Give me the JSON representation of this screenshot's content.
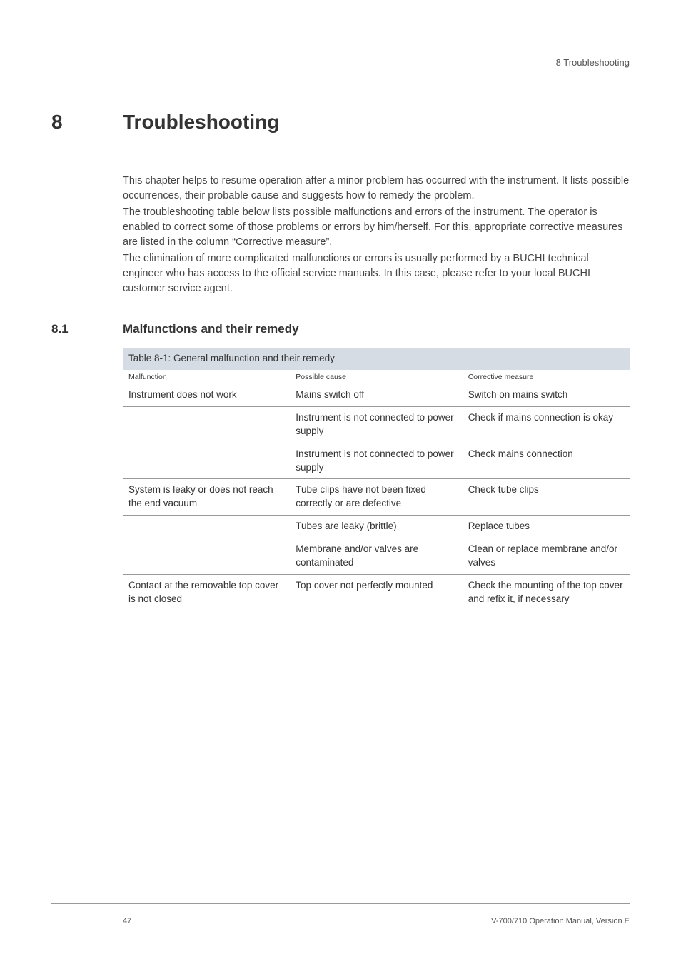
{
  "running_head": "8   Troubleshooting",
  "chapter": {
    "num": "8",
    "title": "Troubleshooting"
  },
  "intro": {
    "p1": "This chapter helps to resume operation after a minor problem has occurred with the instrument. It lists possible occurrences, their probable cause and suggests how to remedy the problem.",
    "p2": "The troubleshooting table below lists possible malfunctions and errors of the instrument. The operator is enabled to correct some of those problems or errors by him/herself. For this, appropriate corrective measures are listed in the column “Corrective measure”.",
    "p3": "The elimination of more complicated malfunctions or errors is usually performed by a BUCHI technical engineer who has access to the official service manuals. In this case, please refer to your local BUCHI customer service agent."
  },
  "section": {
    "num": "8.1",
    "title": "Malfunctions and their remedy"
  },
  "table": {
    "caption": "Table 8-1: General malfunction and their remedy",
    "headers": {
      "c1": "Malfunction",
      "c2": "Possible cause",
      "c3": "Corrective measure"
    },
    "rows": [
      {
        "c1": "Instrument does not work",
        "c2": "Mains switch off",
        "c3": "Switch on mains switch"
      },
      {
        "c1": "",
        "c2": "Instrument is not connected to power supply",
        "c3": "Check if mains connection is okay"
      },
      {
        "c1": "",
        "c2": "Instrument is not connected to power supply",
        "c3": "Check mains connection"
      },
      {
        "c1": "System is leaky or does not reach the end vacuum",
        "c2": "Tube clips have not been fixed correctly or are defective",
        "c3": "Check tube clips"
      },
      {
        "c1": "",
        "c2": "Tubes are leaky (brittle)",
        "c3": "Replace tubes"
      },
      {
        "c1": "",
        "c2": "Membrane and/or valves are contaminated",
        "c3": "Clean or replace membrane and/or valves"
      },
      {
        "c1": "Contact at the removable top cover is not closed",
        "c2": "Top cover not perfectly mounted",
        "c3": "Check the mounting of the top cover and refix it, if necessary"
      }
    ]
  },
  "footer": {
    "page": "47",
    "doc": "V-700/710 Operation Manual, Version E"
  },
  "style": {
    "colors": {
      "bg": "#ffffff",
      "text": "#333333",
      "table_header_bg": "#d6dce4",
      "rule": "#999999"
    }
  }
}
